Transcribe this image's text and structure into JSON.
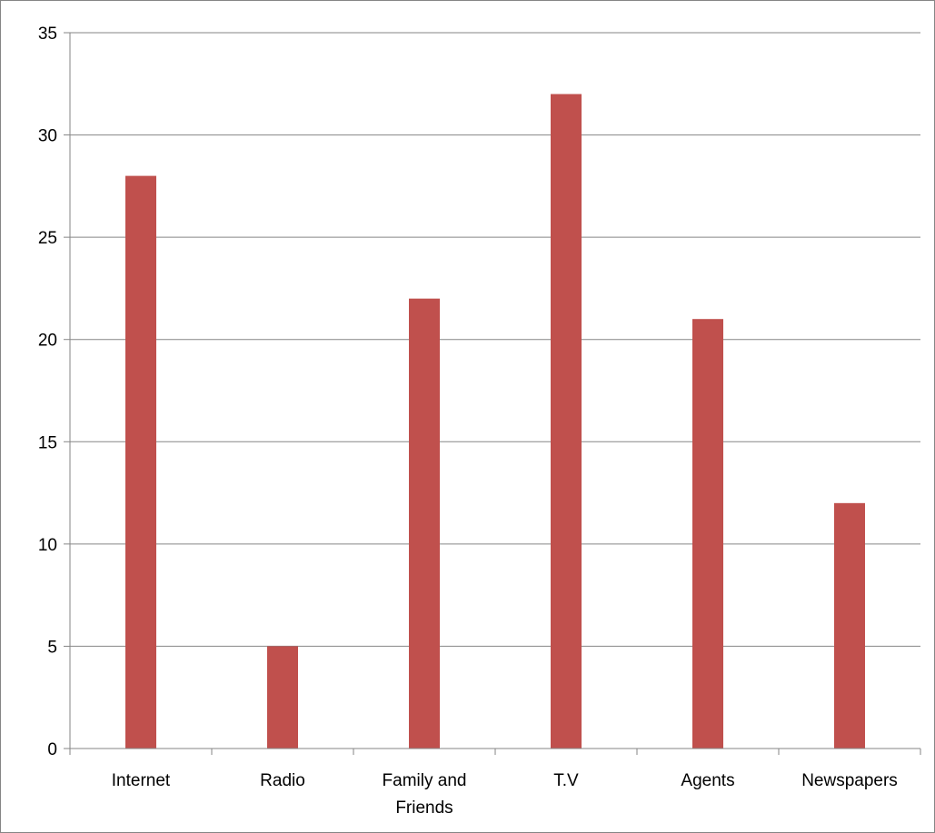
{
  "chart_data": {
    "type": "bar",
    "title": "",
    "xlabel": "",
    "ylabel": "",
    "categories": [
      [
        "Internet"
      ],
      [
        "Radio"
      ],
      [
        "Family and",
        "Friends"
      ],
      [
        "T.V"
      ],
      [
        "Agents"
      ],
      [
        "Newspapers"
      ]
    ],
    "values": [
      28,
      5,
      22,
      32,
      21,
      12
    ],
    "ylim": [
      0,
      35
    ],
    "yticks": [
      "0",
      "5",
      "10",
      "15",
      "20",
      "25",
      "30",
      "35"
    ],
    "grid": true,
    "legend": "none",
    "bar_color": "#c0504d",
    "grid_color": "#868686",
    "axis_color": "#868686"
  }
}
